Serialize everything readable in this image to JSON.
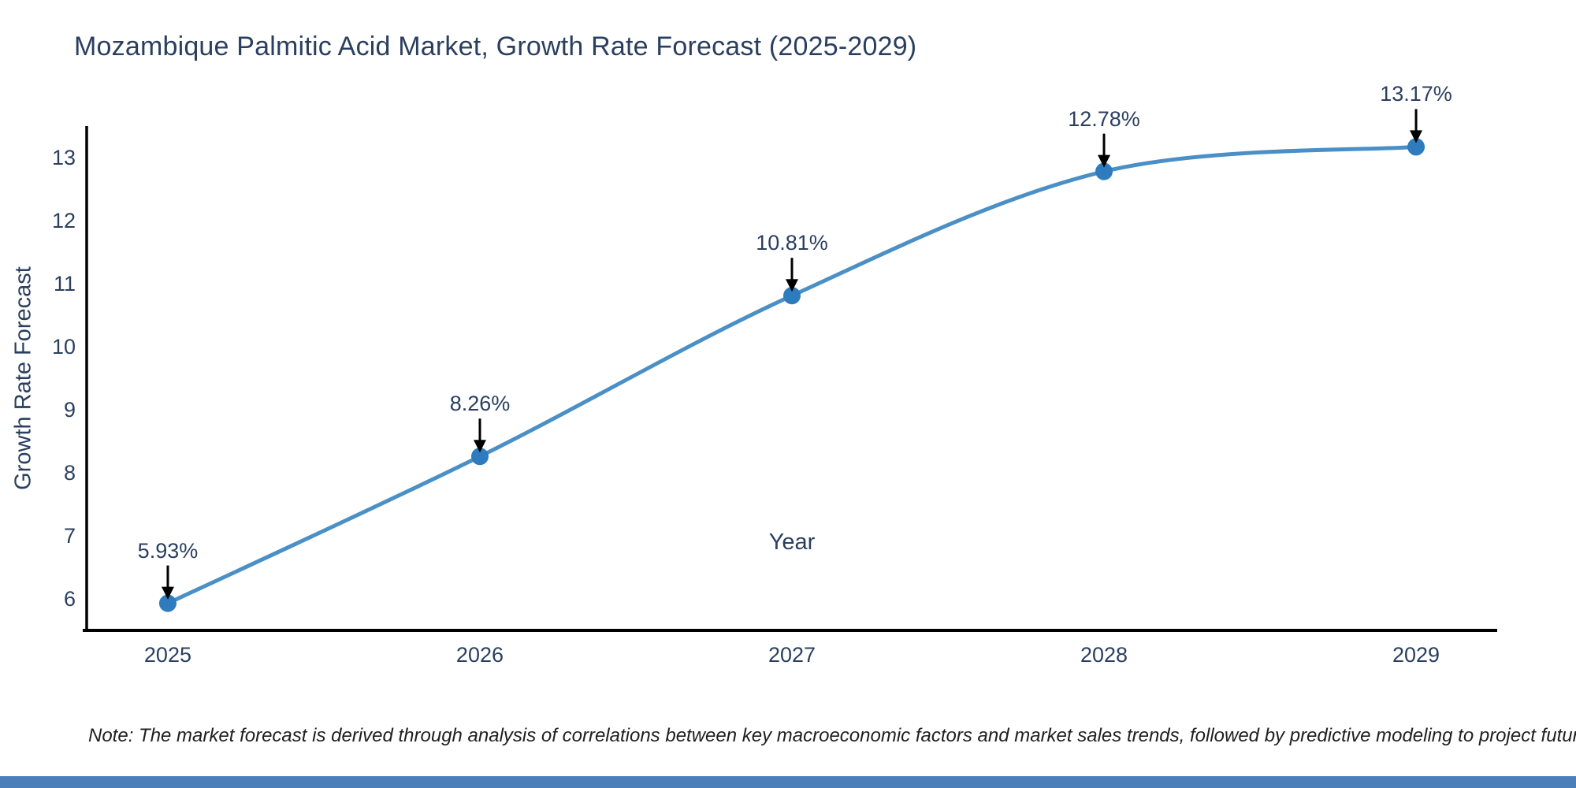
{
  "title": "Mozambique Palmitic Acid Market, Growth Rate Forecast (2025-2029)",
  "note": "Note: The market forecast is derived through analysis of correlations between key macroeconomic factors and market sales trends, followed by predictive modeling to project future sales",
  "chart_data": {
    "type": "line",
    "title": "Mozambique Palmitic Acid Market, Growth Rate Forecast (2025-2029)",
    "xlabel": "Year",
    "ylabel": "Growth Rate Forecast",
    "x": [
      2025,
      2026,
      2027,
      2028,
      2029
    ],
    "series": [
      {
        "name": "Growth Rate Forecast",
        "values": [
          5.93,
          8.26,
          10.81,
          12.78,
          13.17
        ]
      }
    ],
    "point_labels": [
      "5.93%",
      "8.26%",
      "10.81%",
      "12.78%",
      "13.17%"
    ],
    "xticks": [
      2025,
      2026,
      2027,
      2028,
      2029
    ],
    "yticks": [
      6,
      7,
      8,
      9,
      10,
      11,
      12,
      13
    ],
    "xlim": [
      2024.74,
      2029.26
    ],
    "ylim": [
      5.5,
      13.5
    ],
    "grid": false,
    "legend": "none",
    "line_shape": "spline",
    "colors": {
      "line": "#4a90c6",
      "marker": "#2e7bbd",
      "text": "#2a3f5f",
      "axis": "#000000",
      "arrow": "#000000",
      "footer_bar": "#4a7fba"
    }
  }
}
